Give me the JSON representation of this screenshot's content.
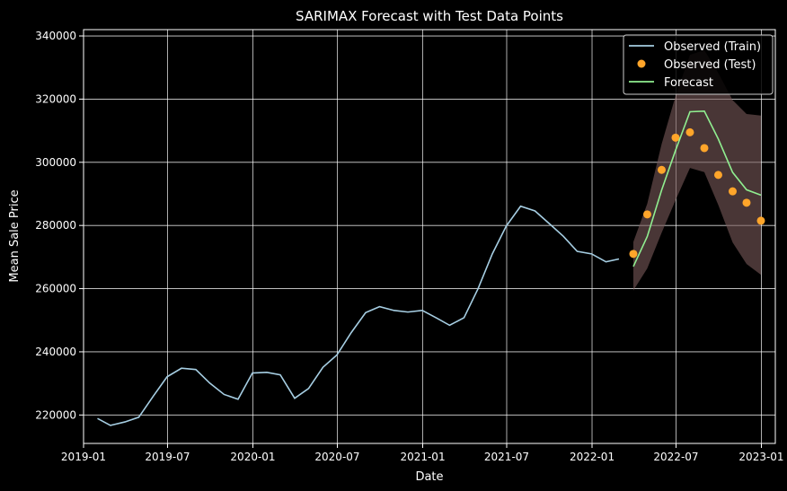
{
  "chart_data": {
    "type": "line",
    "title": "SARIMAX Forecast with Test Data Points",
    "xlabel": "Date",
    "ylabel": "Mean Sale Price",
    "x_axis_type": "date",
    "xlim": [
      "2019-01-01",
      "2023-01-31"
    ],
    "ylim": [
      211000,
      342000
    ],
    "grid": true,
    "legend_position": "top-right",
    "x_ticks": [
      {
        "date": "2019-01-01",
        "label": "2019-01"
      },
      {
        "date": "2019-07-01",
        "label": "2019-07"
      },
      {
        "date": "2020-01-01",
        "label": "2020-01"
      },
      {
        "date": "2020-07-01",
        "label": "2020-07"
      },
      {
        "date": "2021-01-01",
        "label": "2021-01"
      },
      {
        "date": "2021-07-01",
        "label": "2021-07"
      },
      {
        "date": "2022-01-01",
        "label": "2022-01"
      },
      {
        "date": "2022-07-01",
        "label": "2022-07"
      },
      {
        "date": "2023-01-01",
        "label": "2023-01"
      }
    ],
    "y_ticks": [
      {
        "value": 220000,
        "label": "220000"
      },
      {
        "value": 240000,
        "label": "240000"
      },
      {
        "value": 260000,
        "label": "260000"
      },
      {
        "value": 280000,
        "label": "280000"
      },
      {
        "value": 300000,
        "label": "300000"
      },
      {
        "value": 320000,
        "label": "320000"
      },
      {
        "value": 340000,
        "label": "340000"
      }
    ],
    "series": [
      {
        "name": "Observed (Train)",
        "kind": "line",
        "color": "#a6cee3",
        "points": [
          [
            "2019-01-31",
            218900
          ],
          [
            "2019-02-28",
            216700
          ],
          [
            "2019-03-31",
            217800
          ],
          [
            "2019-04-30",
            219300
          ],
          [
            "2019-05-31",
            225900
          ],
          [
            "2019-06-30",
            232100
          ],
          [
            "2019-07-31",
            234800
          ],
          [
            "2019-08-31",
            234400
          ],
          [
            "2019-09-30",
            230100
          ],
          [
            "2019-10-31",
            226500
          ],
          [
            "2019-11-30",
            225000
          ],
          [
            "2019-12-31",
            233300
          ],
          [
            "2020-01-31",
            233500
          ],
          [
            "2020-02-29",
            232700
          ],
          [
            "2020-03-31",
            225300
          ],
          [
            "2020-04-30",
            228400
          ],
          [
            "2020-05-31",
            235100
          ],
          [
            "2020-06-30",
            239000
          ],
          [
            "2020-07-31",
            246100
          ],
          [
            "2020-08-31",
            252400
          ],
          [
            "2020-09-30",
            254300
          ],
          [
            "2020-10-31",
            253100
          ],
          [
            "2020-11-30",
            252600
          ],
          [
            "2020-12-31",
            253100
          ],
          [
            "2021-01-31",
            250700
          ],
          [
            "2021-02-28",
            248400
          ],
          [
            "2021-03-31",
            250800
          ],
          [
            "2021-04-30",
            259900
          ],
          [
            "2021-05-31",
            271000
          ],
          [
            "2021-06-30",
            279800
          ],
          [
            "2021-07-31",
            286100
          ],
          [
            "2021-08-31",
            284600
          ],
          [
            "2021-09-30",
            280700
          ],
          [
            "2021-10-31",
            276600
          ],
          [
            "2021-11-30",
            271800
          ],
          [
            "2021-12-31",
            271000
          ],
          [
            "2022-01-31",
            268500
          ],
          [
            "2022-02-28",
            269400
          ]
        ]
      },
      {
        "name": "Observed (Test)",
        "kind": "scatter",
        "color": "#ffa52a",
        "points": [
          [
            "2022-03-31",
            271000
          ],
          [
            "2022-04-30",
            283500
          ],
          [
            "2022-05-31",
            297600
          ],
          [
            "2022-06-30",
            307800
          ],
          [
            "2022-07-31",
            309500
          ],
          [
            "2022-08-31",
            304500
          ],
          [
            "2022-09-30",
            296000
          ],
          [
            "2022-10-31",
            290800
          ],
          [
            "2022-11-30",
            287200
          ],
          [
            "2022-12-31",
            281500
          ]
        ]
      },
      {
        "name": "Forecast",
        "kind": "line",
        "color": "#90ee90",
        "points": [
          [
            "2022-03-31",
            267000
          ],
          [
            "2022-04-30",
            276500
          ],
          [
            "2022-05-31",
            291200
          ],
          [
            "2022-06-30",
            303800
          ],
          [
            "2022-07-31",
            316000
          ],
          [
            "2022-08-31",
            316200
          ],
          [
            "2022-09-30",
            307400
          ],
          [
            "2022-10-31",
            296800
          ],
          [
            "2022-11-30",
            291300
          ],
          [
            "2022-12-31",
            289600
          ]
        ]
      }
    ],
    "confidence_band": {
      "color": "#7a5a5a",
      "lower": [
        259400,
        266400,
        277700,
        288000,
        298200,
        296900,
        286500,
        274600,
        267800,
        264400
      ],
      "upper": [
        274800,
        286900,
        305800,
        321000,
        334000,
        335500,
        328300,
        319700,
        315300,
        314800
      ]
    }
  }
}
